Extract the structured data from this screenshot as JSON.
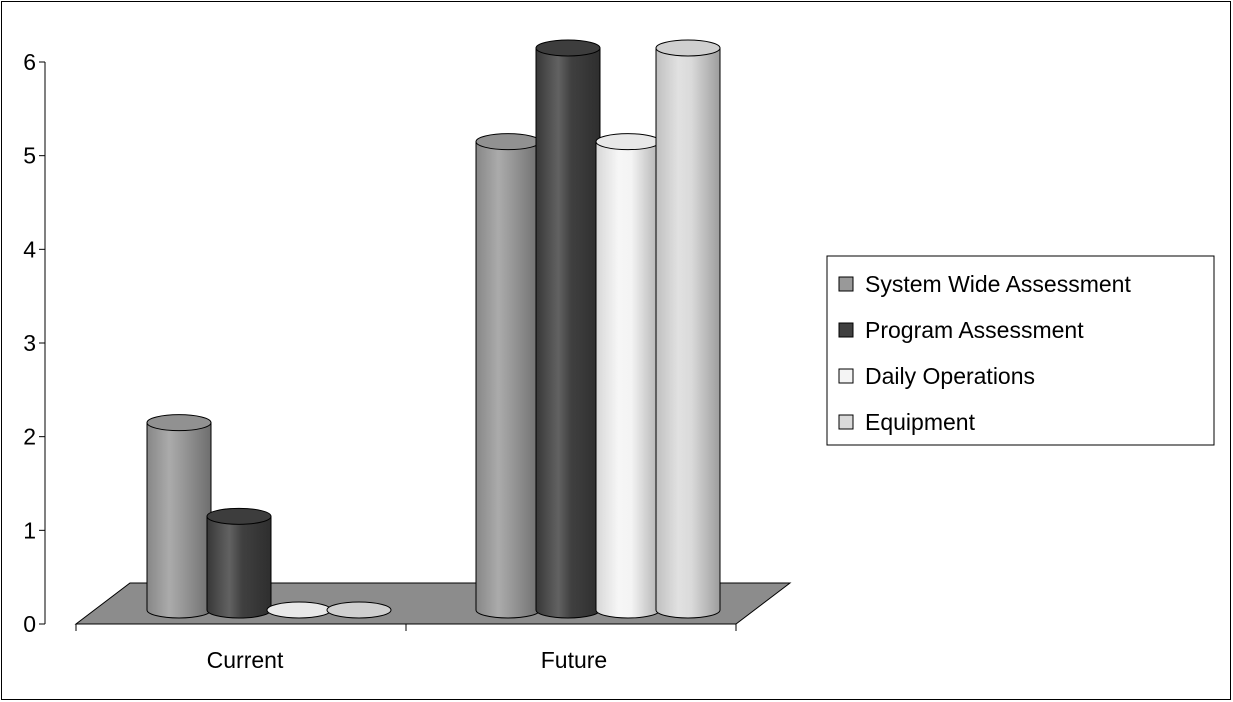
{
  "chart_data": {
    "type": "bar",
    "style": "3d-cylinder",
    "categories": [
      "Current",
      "Future"
    ],
    "series": [
      {
        "name": "System Wide Assessment",
        "values": [
          2,
          5
        ],
        "color": "#999999"
      },
      {
        "name": "Program Assessment",
        "values": [
          1,
          6
        ],
        "color": "#404040"
      },
      {
        "name": "Daily Operations",
        "values": [
          0,
          5
        ],
        "color": "#f4f4f4"
      },
      {
        "name": "Equipment",
        "values": [
          0,
          6
        ],
        "color": "#dadada"
      }
    ],
    "y_ticks": [
      "0",
      "1",
      "2",
      "3",
      "4",
      "5",
      "6"
    ],
    "ylim": [
      0,
      6
    ],
    "grid": false,
    "legend_position": "right",
    "floor_color": "#8c8c8c"
  }
}
